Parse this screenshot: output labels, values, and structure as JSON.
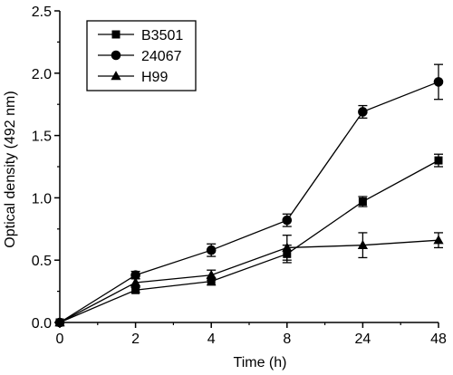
{
  "chart_data": {
    "type": "line",
    "xlabel": "Time (h)",
    "ylabel": "Optical density (492 nm)",
    "categories": [
      "0",
      "2",
      "4",
      "8",
      "24",
      "48"
    ],
    "ylim": [
      0.0,
      2.5
    ],
    "yticks": [
      "0.0",
      "0.5",
      "1.0",
      "1.5",
      "2.0",
      "2.5"
    ],
    "grid": false,
    "legend_position": "top-left",
    "series": [
      {
        "name": "B3501",
        "marker": "square",
        "values": [
          0.0,
          0.26,
          0.33,
          0.55,
          0.97,
          1.3
        ],
        "errors": [
          0.0,
          0.02,
          0.03,
          0.07,
          0.04,
          0.05
        ]
      },
      {
        "name": "24067",
        "marker": "circle",
        "values": [
          0.0,
          0.38,
          0.58,
          0.82,
          1.69,
          1.93
        ],
        "errors": [
          0.0,
          0.03,
          0.05,
          0.05,
          0.05,
          0.14
        ]
      },
      {
        "name": "H99",
        "marker": "triangle",
        "values": [
          0.0,
          0.32,
          0.38,
          0.6,
          0.62,
          0.66
        ],
        "errors": [
          0.0,
          0.03,
          0.04,
          0.1,
          0.1,
          0.06
        ]
      }
    ]
  }
}
